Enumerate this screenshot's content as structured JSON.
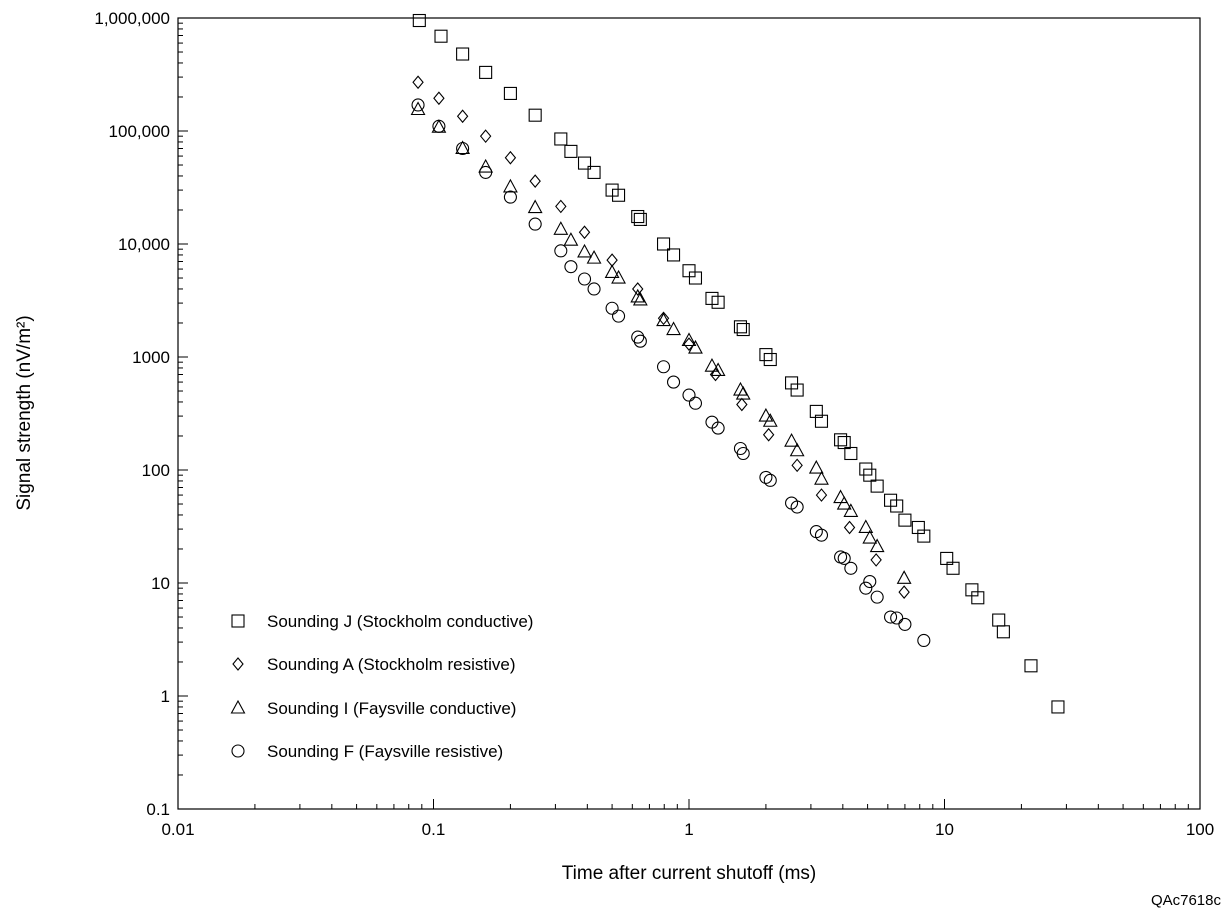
{
  "figure_id": "QAc7618c",
  "chart_data": {
    "type": "scatter",
    "title": "",
    "xlabel": "Time after current shutoff (ms)",
    "ylabel": "Signal strength (nV/m²)",
    "x_scale": "log",
    "y_scale": "log",
    "xlim": [
      0.01,
      100
    ],
    "ylim": [
      0.1,
      1000000
    ],
    "grid": false,
    "legend_position": "bottom-left",
    "x_ticks": [
      {
        "value": 0.01,
        "label": "0.01"
      },
      {
        "value": 0.1,
        "label": "0.1"
      },
      {
        "value": 1,
        "label": "1"
      },
      {
        "value": 10,
        "label": "10"
      },
      {
        "value": 100,
        "label": "100"
      }
    ],
    "y_ticks": [
      {
        "value": 0.1,
        "label": "0.1"
      },
      {
        "value": 1,
        "label": "1"
      },
      {
        "value": 10,
        "label": "10"
      },
      {
        "value": 100,
        "label": "100"
      },
      {
        "value": 1000,
        "label": "1000"
      },
      {
        "value": 10000,
        "label": "10,000"
      },
      {
        "value": 100000,
        "label": "100,000"
      },
      {
        "value": 1000000,
        "label": "1,000,000"
      }
    ],
    "series": [
      {
        "name": "Sounding J (Stockholm conductive)",
        "marker": "square",
        "points": [
          [
            0.088,
            950000
          ],
          [
            0.107,
            690000
          ],
          [
            0.13,
            480000
          ],
          [
            0.16,
            330000
          ],
          [
            0.2,
            215000
          ],
          [
            0.25,
            138000
          ],
          [
            0.315,
            85000
          ],
          [
            0.345,
            66000
          ],
          [
            0.39,
            52000
          ],
          [
            0.425,
            43000
          ],
          [
            0.5,
            30000
          ],
          [
            0.53,
            27000
          ],
          [
            0.63,
            17500
          ],
          [
            0.645,
            16500
          ],
          [
            0.795,
            10000
          ],
          [
            0.87,
            8000
          ],
          [
            1.0,
            5800
          ],
          [
            1.06,
            5000
          ],
          [
            1.23,
            3300
          ],
          [
            1.3,
            3050
          ],
          [
            1.59,
            1850
          ],
          [
            1.63,
            1750
          ],
          [
            2.0,
            1050
          ],
          [
            2.08,
            950
          ],
          [
            2.52,
            590
          ],
          [
            2.65,
            510
          ],
          [
            3.15,
            330
          ],
          [
            3.3,
            270
          ],
          [
            3.92,
            185
          ],
          [
            4.05,
            175
          ],
          [
            4.3,
            140
          ],
          [
            4.92,
            102
          ],
          [
            5.1,
            90
          ],
          [
            5.45,
            72
          ],
          [
            6.15,
            54
          ],
          [
            6.5,
            48
          ],
          [
            7.0,
            36
          ],
          [
            7.9,
            31
          ],
          [
            8.3,
            26
          ],
          [
            10.2,
            16.5
          ],
          [
            10.8,
            13.5
          ],
          [
            12.8,
            8.7
          ],
          [
            13.5,
            7.4
          ],
          [
            16.3,
            4.7
          ],
          [
            17.0,
            3.7
          ],
          [
            21.8,
            1.85
          ],
          [
            27.8,
            0.8
          ]
        ]
      },
      {
        "name": "Sounding A (Stockholm resistive)",
        "marker": "diamond",
        "points": [
          [
            0.087,
            270000
          ],
          [
            0.105,
            195000
          ],
          [
            0.13,
            135000
          ],
          [
            0.16,
            90000
          ],
          [
            0.2,
            58000
          ],
          [
            0.25,
            36000
          ],
          [
            0.315,
            21500
          ],
          [
            0.39,
            12700
          ],
          [
            0.5,
            7200
          ],
          [
            0.63,
            4000
          ],
          [
            0.795,
            2200
          ],
          [
            1.0,
            1300
          ],
          [
            1.27,
            700
          ],
          [
            1.61,
            380
          ],
          [
            2.05,
            205
          ],
          [
            2.65,
            110
          ],
          [
            3.3,
            60
          ],
          [
            4.25,
            31
          ],
          [
            5.4,
            16
          ],
          [
            6.95,
            8.3
          ]
        ]
      },
      {
        "name": "Sounding I (Faysville conductive)",
        "marker": "triangle",
        "points": [
          [
            0.087,
            155000
          ],
          [
            0.105,
            108000
          ],
          [
            0.13,
            70000
          ],
          [
            0.16,
            48000
          ],
          [
            0.2,
            32000
          ],
          [
            0.25,
            21000
          ],
          [
            0.315,
            13500
          ],
          [
            0.345,
            10800
          ],
          [
            0.39,
            8500
          ],
          [
            0.425,
            7500
          ],
          [
            0.5,
            5600
          ],
          [
            0.53,
            5000
          ],
          [
            0.63,
            3400
          ],
          [
            0.645,
            3200
          ],
          [
            0.795,
            2100
          ],
          [
            0.87,
            1750
          ],
          [
            1.0,
            1400
          ],
          [
            1.06,
            1200
          ],
          [
            1.23,
            830
          ],
          [
            1.3,
            760
          ],
          [
            1.59,
            510
          ],
          [
            1.63,
            470
          ],
          [
            2.0,
            300
          ],
          [
            2.08,
            270
          ],
          [
            2.52,
            180
          ],
          [
            2.65,
            148
          ],
          [
            3.15,
            104
          ],
          [
            3.3,
            83
          ],
          [
            3.92,
            57
          ],
          [
            4.05,
            50
          ],
          [
            4.3,
            43
          ],
          [
            4.92,
            31
          ],
          [
            5.1,
            25
          ],
          [
            5.45,
            21
          ],
          [
            6.95,
            11
          ]
        ]
      },
      {
        "name": "Sounding F (Faysville resistive)",
        "marker": "circle",
        "points": [
          [
            0.087,
            170000
          ],
          [
            0.105,
            110000
          ],
          [
            0.13,
            70000
          ],
          [
            0.16,
            43000
          ],
          [
            0.2,
            26000
          ],
          [
            0.25,
            15000
          ],
          [
            0.315,
            8700
          ],
          [
            0.345,
            6300
          ],
          [
            0.39,
            4900
          ],
          [
            0.425,
            4000
          ],
          [
            0.5,
            2700
          ],
          [
            0.53,
            2300
          ],
          [
            0.63,
            1500
          ],
          [
            0.645,
            1380
          ],
          [
            0.795,
            820
          ],
          [
            0.87,
            600
          ],
          [
            1.0,
            460
          ],
          [
            1.06,
            390
          ],
          [
            1.23,
            265
          ],
          [
            1.3,
            235
          ],
          [
            1.59,
            155
          ],
          [
            1.63,
            140
          ],
          [
            2.0,
            86
          ],
          [
            2.08,
            81
          ],
          [
            2.52,
            51
          ],
          [
            2.65,
            47
          ],
          [
            3.15,
            28.5
          ],
          [
            3.3,
            26.5
          ],
          [
            3.92,
            17
          ],
          [
            4.05,
            16.5
          ],
          [
            4.3,
            13.5
          ],
          [
            4.92,
            9
          ],
          [
            5.1,
            10.3
          ],
          [
            5.45,
            7.5
          ],
          [
            6.15,
            5
          ],
          [
            6.5,
            4.9
          ],
          [
            7.0,
            4.3
          ],
          [
            8.3,
            3.1
          ]
        ]
      }
    ]
  }
}
